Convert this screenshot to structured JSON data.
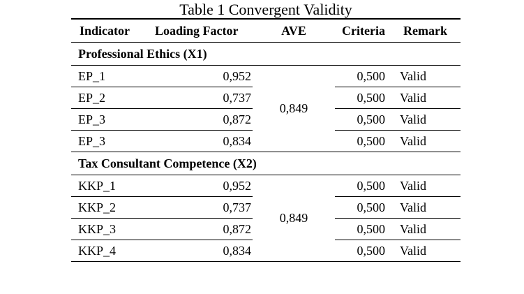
{
  "caption": "Table 1 Convergent Validity",
  "headers": {
    "indicator": "Indicator",
    "loading_factor": "Loading Factor",
    "ave": "AVE",
    "criteria": "Criteria",
    "remark": "Remark"
  },
  "groups": [
    {
      "title": "Professional Ethics (X1)",
      "ave": "0,849",
      "rows": [
        {
          "indicator": "EP_1",
          "loading_factor": "0,952",
          "criteria": "0,500",
          "remark": "Valid"
        },
        {
          "indicator": "EP_2",
          "loading_factor": "0,737",
          "criteria": "0,500",
          "remark": "Valid"
        },
        {
          "indicator": "EP_3",
          "loading_factor": "0,872",
          "criteria": "0,500",
          "remark": "Valid"
        },
        {
          "indicator": "EP_3",
          "loading_factor": "0,834",
          "criteria": "0,500",
          "remark": "Valid"
        }
      ]
    },
    {
      "title": "Tax Consultant Competence (X2)",
      "ave": "0,849",
      "rows": [
        {
          "indicator": "KKP_1",
          "loading_factor": "0,952",
          "criteria": "0,500",
          "remark": "Valid"
        },
        {
          "indicator": "KKP_2",
          "loading_factor": "0,737",
          "criteria": "0,500",
          "remark": "Valid"
        },
        {
          "indicator": "KKP_3",
          "loading_factor": "0,872",
          "criteria": "0,500",
          "remark": "Valid"
        },
        {
          "indicator": "KKP_4",
          "loading_factor": "0,834",
          "criteria": "0,500",
          "remark": "Valid"
        }
      ]
    }
  ]
}
